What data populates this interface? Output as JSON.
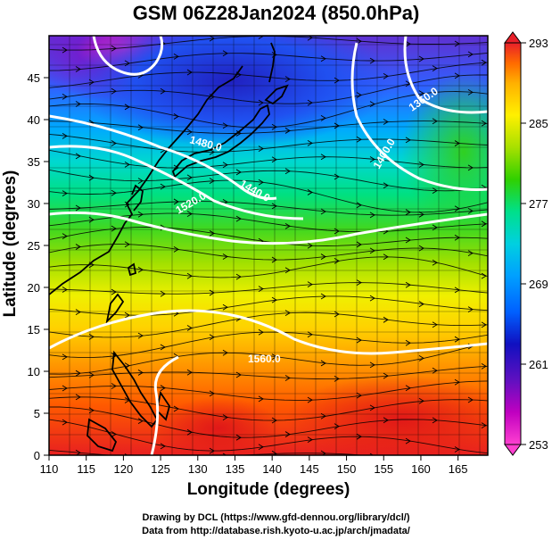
{
  "title": "GSM 06Z28Jan2024 (850.0hPa)",
  "axes": {
    "x_label": "Longitude (degrees)",
    "y_label": "Latitude  (degrees)",
    "x_ticks": [
      "110",
      "115",
      "120",
      "125",
      "130",
      "135",
      "140",
      "145",
      "150",
      "155",
      "160",
      "165"
    ],
    "y_ticks": [
      "0",
      "5",
      "10",
      "15",
      "20",
      "25",
      "30",
      "35",
      "40",
      "45"
    ]
  },
  "colorbar": {
    "labels": [
      "293",
      "285",
      "277",
      "269",
      "261",
      "253"
    ],
    "colors": [
      "#e8202a",
      "#ff6a00",
      "#ffb000",
      "#fff000",
      "#a8e000",
      "#30d000",
      "#00e08a",
      "#00d0e0",
      "#00a0ff",
      "#0060ff",
      "#1010c0",
      "#6010c0",
      "#c000c0",
      "#ff40d0"
    ]
  },
  "contour_labels": [
    "1480.0",
    "1360.0",
    "1520.0",
    "1400.0",
    "1440.0",
    "1560.0"
  ],
  "credits": {
    "line1": "Drawing by DCL (https://www.gfd-dennou.org/library/dcl/)",
    "line2": "Data from http://database.rish.kyoto-u.ac.jp/arch/jmadata/"
  }
}
